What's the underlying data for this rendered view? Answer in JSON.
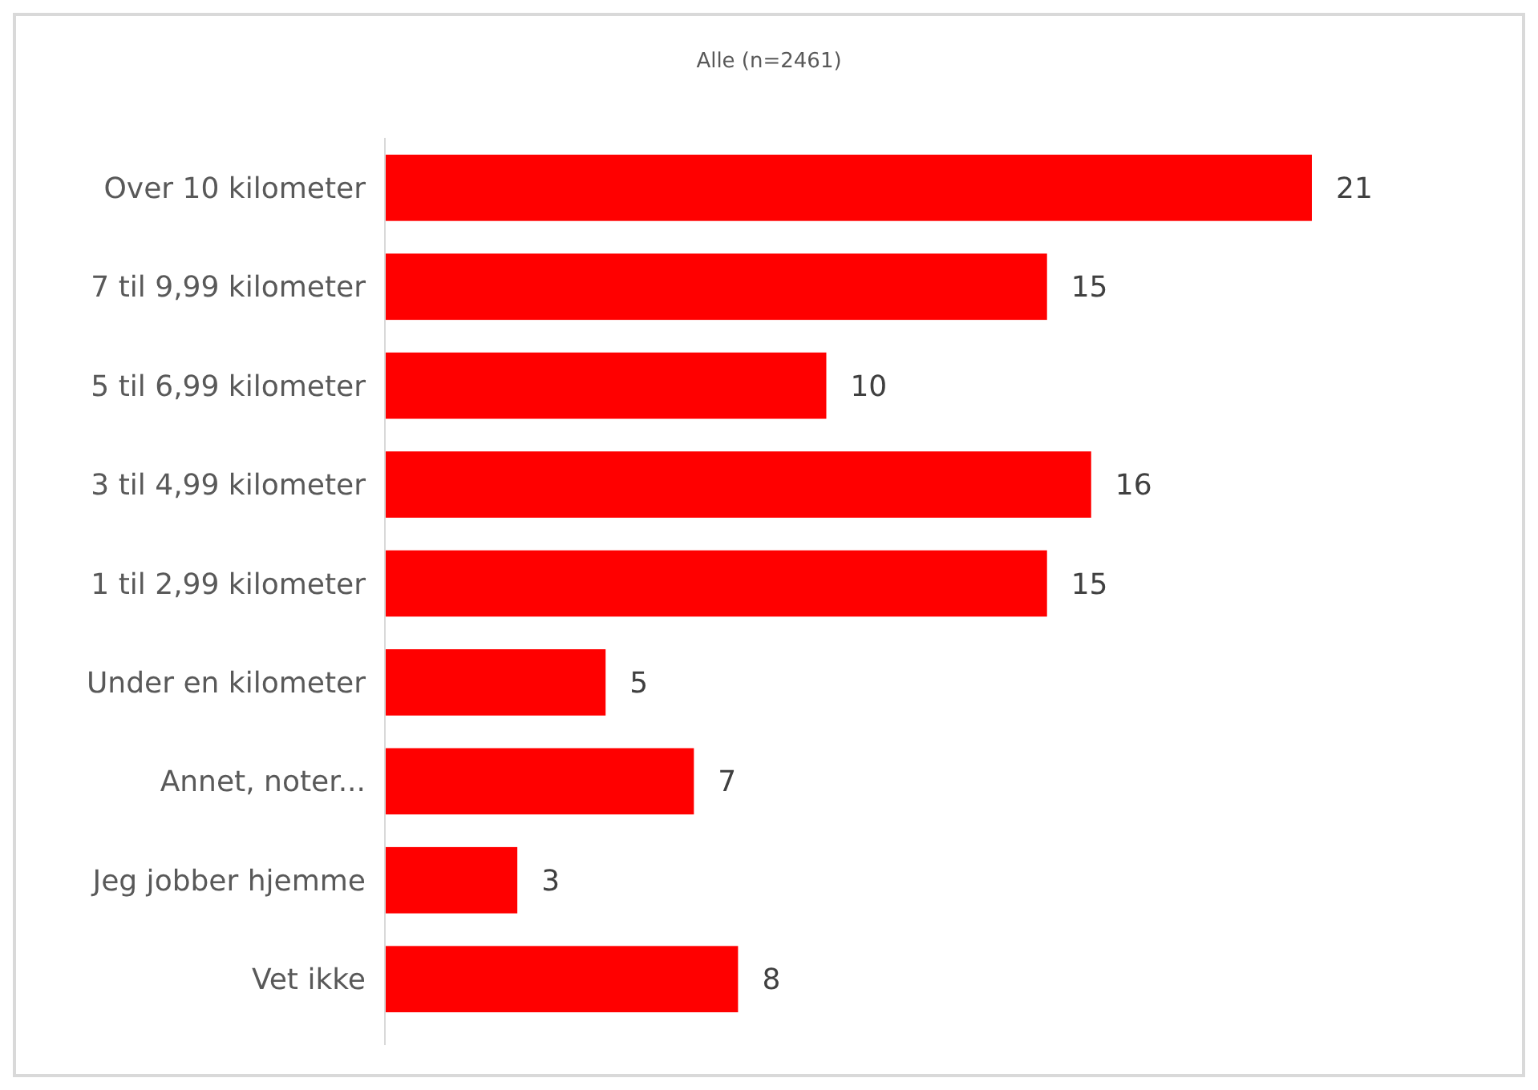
{
  "chart_data": {
    "type": "bar",
    "orientation": "horizontal",
    "title": "Alle (n=2461)",
    "categories": [
      "Over 10 kilometer",
      "7 til 9,99 kilometer",
      "5 til 6,99 kilometer",
      "3 til 4,99 kilometer",
      "1 til 2,99 kilometer",
      "Under en kilometer",
      "Annet, noter...",
      "Jeg jobber hjemme",
      "Vet ikke"
    ],
    "values": [
      21,
      15,
      10,
      16,
      15,
      5,
      7,
      3,
      8
    ],
    "color": "#ff0000",
    "data_labels": true
  }
}
